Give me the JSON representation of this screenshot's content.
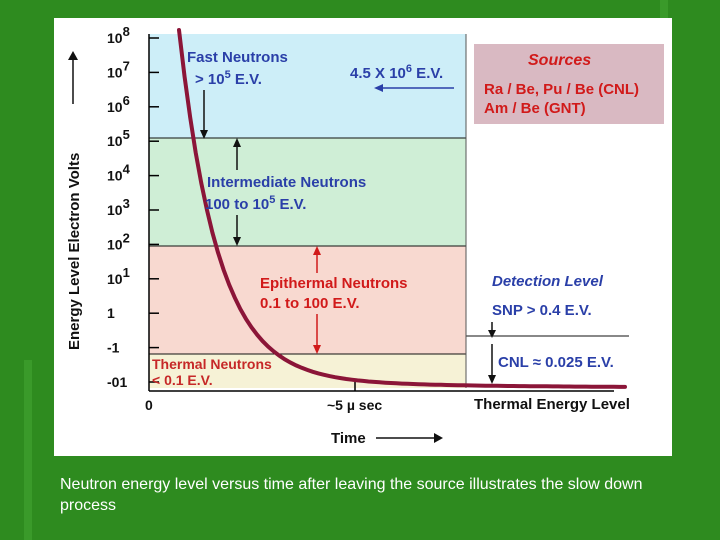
{
  "colors": {
    "background": "#2e8b1f",
    "fast_band": "#cdeef8",
    "intermediate_band": "#cfeed6",
    "epithermal_band": "#f8d9d0",
    "thermal_band": "#f6f2d6",
    "sources_box": "#d9b9c2",
    "heading_blue": "#2a3fa8",
    "text_red": "#d11a1a",
    "curve": "#8b1538"
  },
  "chart_data": {
    "type": "line",
    "xlabel": "Time",
    "ylabel": "Energy Level Electron Volts",
    "y_ticks": [
      {
        "base": "10",
        "exp": "8"
      },
      {
        "base": "10",
        "exp": "7"
      },
      {
        "base": "10",
        "exp": "6"
      },
      {
        "base": "10",
        "exp": "5"
      },
      {
        "base": "10",
        "exp": "4"
      },
      {
        "base": "10",
        "exp": "3"
      },
      {
        "base": "10",
        "exp": "2"
      },
      {
        "base": "10",
        "exp": "1"
      },
      {
        "base": "1",
        "exp": ""
      },
      {
        "base": "-1",
        "exp": ""
      },
      {
        "base": "-01",
        "exp": ""
      }
    ],
    "x_ticks": [
      {
        "label": "0",
        "pos": 0
      },
      {
        "label": "~5 µ sec",
        "pos": 5
      }
    ],
    "x_end_label": "Thermal Energy Level",
    "regions": [
      {
        "name": "Fast Neutrons",
        "range_pre": "> 10",
        "range_exp": "5",
        "range_post": " E.V."
      },
      {
        "name": "Intermediate Neutrons",
        "range_pre": "100 to 10",
        "range_exp": "5",
        "range_post": " E.V."
      },
      {
        "name": "Epithermal Neutrons",
        "range_pre": "0.1 to 100 E.V.",
        "range_exp": "",
        "range_post": ""
      },
      {
        "name": "Thermal Neutrons",
        "range_pre": "< 0.1 E.V.",
        "range_exp": "",
        "range_post": ""
      }
    ],
    "source_energy": {
      "pre": "4.5 X 10",
      "exp": "6",
      "post": " E.V."
    },
    "sources": {
      "title": "Sources",
      "line1": "Ra / Be, Pu / Be (CNL)",
      "line2": "Am / Be (GNT)"
    },
    "detection": {
      "title": "Detection Level",
      "snp": "SNP > 0.4 E.V.",
      "cnl": "CNL ≈ 0.025 E.V."
    }
  },
  "caption": "Neutron energy level versus time after leaving the source illustrates the slow down process"
}
